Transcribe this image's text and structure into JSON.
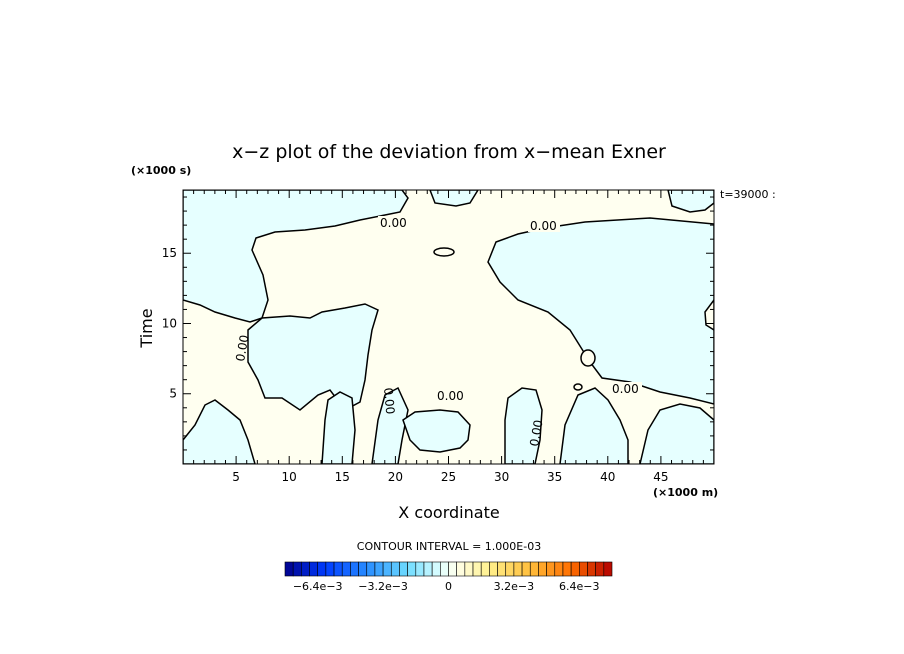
{
  "chart_data": {
    "type": "contour",
    "title": "x−z plot of the deviation from x−mean Exner",
    "xlabel": "X coordinate",
    "ylabel": "Time",
    "x_units": "(×1000 m)",
    "y_units": "(×1000 s)",
    "time_stamp": "t=39000 :",
    "xlim": [
      0,
      50
    ],
    "ylim": [
      0,
      19.5
    ],
    "xticks": [
      5,
      10,
      15,
      20,
      25,
      30,
      35,
      40,
      45
    ],
    "yticks": [
      5,
      10,
      15
    ],
    "contour_label": "0.00",
    "contour_interval_text": "CONTOUR INTERVAL = 1.000E-03",
    "colorbar": {
      "min": -0.008,
      "max": 0.008,
      "step": 0.0004,
      "tick_labels": [
        "−6.4e−3",
        "−3.2e−3",
        "0",
        "3.2e−3",
        "6.4e−3"
      ],
      "tick_values": [
        -0.0064,
        -0.0032,
        0,
        0.0032,
        0.0064
      ]
    },
    "colors": {
      "negative_fill": "#e6ffff",
      "positive_fill": "#fffff0",
      "contour_line": "#000000"
    }
  }
}
